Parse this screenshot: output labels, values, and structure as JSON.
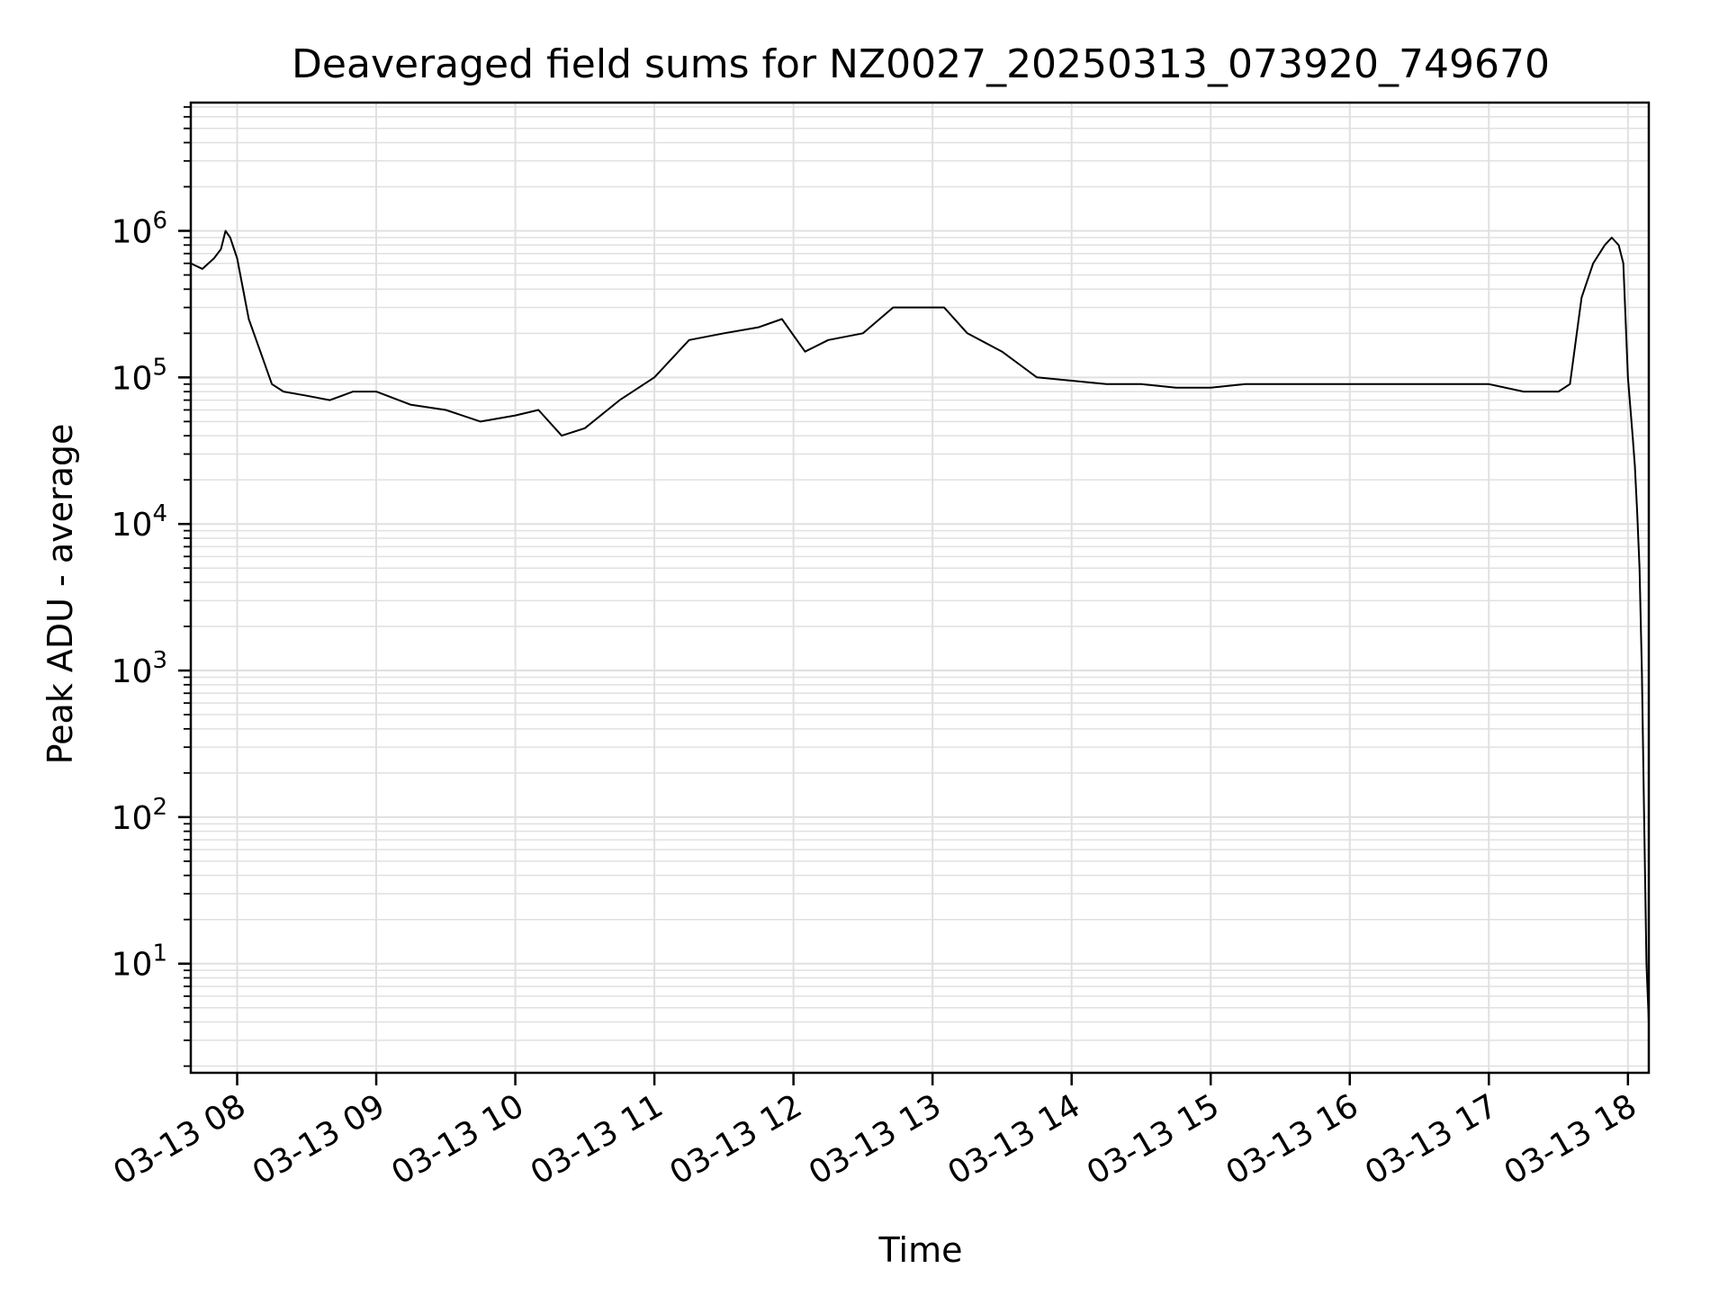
{
  "chart_data": {
    "type": "line",
    "title": "Deaveraged field sums for NZ0027_20250313_073920_749670",
    "xlabel": "Time",
    "ylabel": "Peak ADU - average",
    "x_scale": "time",
    "y_scale": "log",
    "xlim": [
      "2025-03-13 07:40",
      "2025-03-13 18:09"
    ],
    "ylim": [
      1.8,
      7500000
    ],
    "x_ticks": [
      {
        "value": "2025-03-13 08:00",
        "label": "03-13 08"
      },
      {
        "value": "2025-03-13 09:00",
        "label": "03-13 09"
      },
      {
        "value": "2025-03-13 10:00",
        "label": "03-13 10"
      },
      {
        "value": "2025-03-13 11:00",
        "label": "03-13 11"
      },
      {
        "value": "2025-03-13 12:00",
        "label": "03-13 12"
      },
      {
        "value": "2025-03-13 13:00",
        "label": "03-13 13"
      },
      {
        "value": "2025-03-13 14:00",
        "label": "03-13 14"
      },
      {
        "value": "2025-03-13 15:00",
        "label": "03-13 15"
      },
      {
        "value": "2025-03-13 16:00",
        "label": "03-13 16"
      },
      {
        "value": "2025-03-13 17:00",
        "label": "03-13 17"
      },
      {
        "value": "2025-03-13 18:00",
        "label": "03-13 18"
      }
    ],
    "y_ticks": [
      {
        "value": 10,
        "base": "10",
        "exp": "1"
      },
      {
        "value": 100,
        "base": "10",
        "exp": "2"
      },
      {
        "value": 1000,
        "base": "10",
        "exp": "3"
      },
      {
        "value": 10000,
        "base": "10",
        "exp": "4"
      },
      {
        "value": 100000,
        "base": "10",
        "exp": "5"
      },
      {
        "value": 1000000,
        "base": "10",
        "exp": "6"
      }
    ],
    "grid": true,
    "line_color": "#000000",
    "grid_color": "#e0e0e0",
    "series": [
      {
        "x": [
          "2025-03-13 07:40",
          "2025-03-13 07:45",
          "2025-03-13 07:50",
          "2025-03-13 07:53",
          "2025-03-13 07:55",
          "2025-03-13 07:57",
          "2025-03-13 08:00",
          "2025-03-13 08:05",
          "2025-03-13 08:10",
          "2025-03-13 08:15",
          "2025-03-13 08:20",
          "2025-03-13 08:30",
          "2025-03-13 08:40",
          "2025-03-13 08:50",
          "2025-03-13 09:00",
          "2025-03-13 09:15",
          "2025-03-13 09:30",
          "2025-03-13 09:45",
          "2025-03-13 10:00",
          "2025-03-13 10:10",
          "2025-03-13 10:20",
          "2025-03-13 10:30",
          "2025-03-13 10:45",
          "2025-03-13 11:00",
          "2025-03-13 11:15",
          "2025-03-13 11:30",
          "2025-03-13 11:45",
          "2025-03-13 11:55",
          "2025-03-13 12:05",
          "2025-03-13 12:15",
          "2025-03-13 12:30",
          "2025-03-13 12:43",
          "2025-03-13 12:55",
          "2025-03-13 13:05",
          "2025-03-13 13:15",
          "2025-03-13 13:30",
          "2025-03-13 13:45",
          "2025-03-13 14:00",
          "2025-03-13 14:15",
          "2025-03-13 14:30",
          "2025-03-13 14:45",
          "2025-03-13 15:00",
          "2025-03-13 15:15",
          "2025-03-13 15:30",
          "2025-03-13 15:45",
          "2025-03-13 16:00",
          "2025-03-13 16:15",
          "2025-03-13 16:30",
          "2025-03-13 16:45",
          "2025-03-13 17:00",
          "2025-03-13 17:15",
          "2025-03-13 17:30",
          "2025-03-13 17:35",
          "2025-03-13 17:40",
          "2025-03-13 17:45",
          "2025-03-13 17:50",
          "2025-03-13 17:53",
          "2025-03-13 17:56",
          "2025-03-13 17:58",
          "2025-03-13 18:00",
          "2025-03-13 18:02",
          "2025-03-13 18:03",
          "2025-03-13 18:04",
          "2025-03-13 18:05",
          "2025-03-13 18:06",
          "2025-03-13 18:07",
          "2025-03-13 18:08",
          "2025-03-13 18:09"
        ],
        "y": [
          600000,
          550000,
          650000,
          750000,
          1000000,
          900000,
          650000,
          250000,
          150000,
          90000,
          80000,
          75000,
          70000,
          80000,
          80000,
          65000,
          60000,
          50000,
          55000,
          60000,
          40000,
          45000,
          70000,
          100000,
          180000,
          200000,
          220000,
          250000,
          150000,
          180000,
          200000,
          300000,
          300000,
          300000,
          200000,
          150000,
          100000,
          95000,
          90000,
          90000,
          85000,
          85000,
          90000,
          90000,
          90000,
          90000,
          90000,
          90000,
          90000,
          90000,
          80000,
          80000,
          90000,
          350000,
          600000,
          800000,
          900000,
          800000,
          600000,
          100000,
          40000,
          25000,
          12000,
          5000,
          1000,
          100,
          10,
          4
        ]
      }
    ]
  }
}
